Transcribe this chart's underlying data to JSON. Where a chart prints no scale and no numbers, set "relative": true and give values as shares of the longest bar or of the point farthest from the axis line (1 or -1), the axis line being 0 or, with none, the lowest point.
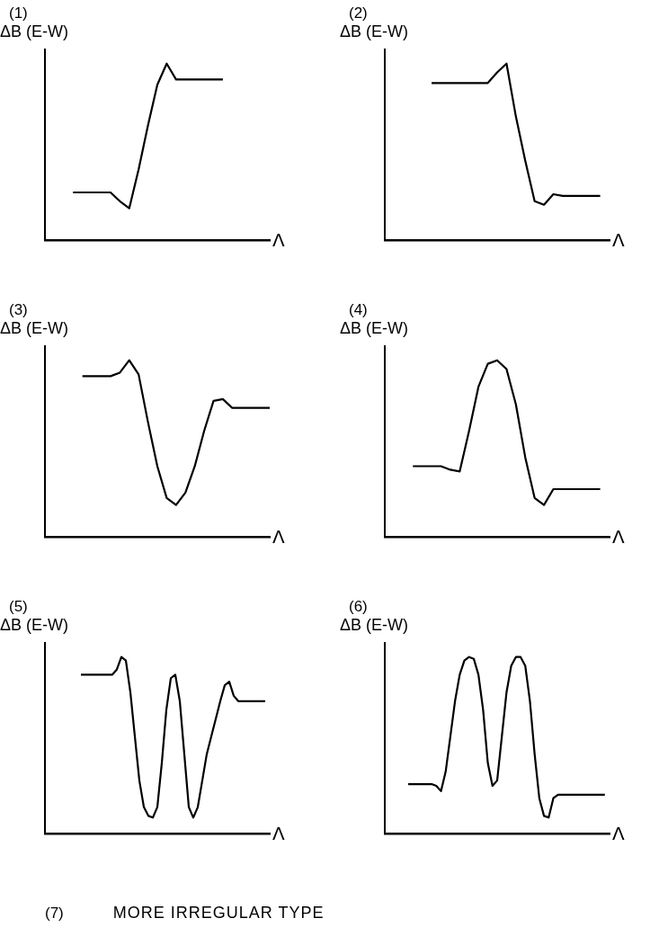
{
  "chart_data": [
    {
      "type": "line",
      "relative": true,
      "title": "(1)",
      "ylabel": "ΔB (E-W)",
      "xlabel": "Λ",
      "grid": false,
      "legend": false,
      "tick_labels": false,
      "marker": "none",
      "line_style": "solid",
      "categories": [
        null,
        null,
        null,
        null,
        null,
        null,
        null,
        null,
        null,
        null,
        null,
        null,
        null,
        null,
        null,
        null,
        null,
        null,
        null,
        null,
        null,
        null,
        null,
        null,
        null
      ],
      "series": [
        {
          "color": "#000000",
          "values": [
            null,
            null,
            null,
            0.27,
            0.27,
            0.27,
            0.27,
            0.27,
            0.22,
            0.18,
            0.4,
            0.65,
            0.88,
            1,
            0.91,
            0.91,
            0.91,
            0.91,
            0.91,
            0.91,
            null,
            null,
            null,
            null,
            null
          ]
        }
      ]
    },
    {
      "type": "line",
      "relative": true,
      "title": "(2)",
      "ylabel": "ΔB (E-W)",
      "xlabel": "Λ",
      "grid": false,
      "legend": false,
      "tick_labels": false,
      "marker": "none",
      "line_style": "solid",
      "categories": [
        null,
        null,
        null,
        null,
        null,
        null,
        null,
        null,
        null,
        null,
        null,
        null,
        null,
        null,
        null,
        null,
        null,
        null,
        null,
        null,
        null,
        null,
        null,
        null,
        null
      ],
      "series": [
        {
          "color": "#000000",
          "values": [
            null,
            null,
            null,
            null,
            null,
            0.89,
            0.89,
            0.89,
            0.89,
            0.89,
            0.89,
            0.89,
            0.95,
            1,
            0.7,
            0.45,
            0.22,
            0.2,
            0.26,
            0.25,
            0.25,
            0.25,
            0.25,
            0.25,
            null
          ]
        }
      ]
    },
    {
      "type": "line",
      "relative": true,
      "title": "(3)",
      "ylabel": "ΔB (E-W)",
      "xlabel": "Λ",
      "grid": false,
      "legend": false,
      "tick_labels": false,
      "marker": "none",
      "line_style": "solid",
      "categories": [
        null,
        null,
        null,
        null,
        null,
        null,
        null,
        null,
        null,
        null,
        null,
        null,
        null,
        null,
        null,
        null,
        null,
        null,
        null,
        null,
        null,
        null,
        null,
        null,
        null
      ],
      "series": [
        {
          "color": "#000000",
          "values": [
            null,
            null,
            null,
            null,
            0.91,
            0.91,
            0.91,
            0.91,
            0.93,
            1,
            0.92,
            0.65,
            0.4,
            0.22,
            0.18,
            0.25,
            0.4,
            0.6,
            0.77,
            0.78,
            0.73,
            0.73,
            0.73,
            0.73,
            0.73
          ]
        }
      ]
    },
    {
      "type": "line",
      "relative": true,
      "title": "(4)",
      "ylabel": "ΔB (E-W)",
      "xlabel": "Λ",
      "grid": false,
      "legend": false,
      "tick_labels": false,
      "marker": "none",
      "line_style": "solid",
      "categories": [
        null,
        null,
        null,
        null,
        null,
        null,
        null,
        null,
        null,
        null,
        null,
        null,
        null,
        null,
        null,
        null,
        null,
        null,
        null,
        null,
        null,
        null,
        null,
        null,
        null
      ],
      "series": [
        {
          "color": "#000000",
          "values": [
            null,
            null,
            null,
            0.4,
            0.4,
            0.4,
            0.4,
            0.38,
            0.37,
            0.6,
            0.85,
            0.98,
            1,
            0.95,
            0.75,
            0.45,
            0.22,
            0.18,
            0.27,
            0.27,
            0.27,
            0.27,
            0.27,
            0.27,
            null
          ]
        }
      ]
    },
    {
      "type": "line",
      "relative": true,
      "title": "(5)",
      "ylabel": "ΔB (E-W)",
      "xlabel": "Λ",
      "grid": false,
      "legend": false,
      "tick_labels": false,
      "marker": "none",
      "line_style": "solid",
      "categories": [
        null,
        null,
        null,
        null,
        null,
        null,
        null,
        null,
        null,
        null,
        null,
        null,
        null,
        null,
        null,
        null,
        null,
        null,
        null,
        null,
        null,
        null,
        null,
        null,
        null,
        null,
        null,
        null,
        null,
        null,
        null,
        null,
        null,
        null,
        null,
        null,
        null,
        null,
        null,
        null,
        null,
        null,
        null,
        null,
        null,
        null,
        null,
        null,
        null,
        null,
        null
      ],
      "series": [
        {
          "color": "#000000",
          "values": [
            null,
            null,
            null,
            null,
            null,
            null,
            null,
            null,
            0.9,
            0.9,
            0.9,
            0.9,
            0.9,
            0.9,
            0.9,
            0.9,
            0.93,
            1,
            0.98,
            0.8,
            0.55,
            0.3,
            0.15,
            0.1,
            0.09,
            0.15,
            0.4,
            0.7,
            0.88,
            0.9,
            0.75,
            0.45,
            0.15,
            0.09,
            0.15,
            0.3,
            0.45,
            0.55,
            0.65,
            0.75,
            0.84,
            0.86,
            0.78,
            0.75,
            0.75,
            0.75,
            0.75,
            0.75,
            0.75,
            0.75,
            null
          ]
        }
      ]
    },
    {
      "type": "line",
      "relative": true,
      "title": "(6)",
      "ylabel": "ΔB (E-W)",
      "xlabel": "Λ",
      "grid": false,
      "legend": false,
      "tick_labels": false,
      "marker": "none",
      "line_style": "solid",
      "categories": [
        null,
        null,
        null,
        null,
        null,
        null,
        null,
        null,
        null,
        null,
        null,
        null,
        null,
        null,
        null,
        null,
        null,
        null,
        null,
        null,
        null,
        null,
        null,
        null,
        null,
        null,
        null,
        null,
        null,
        null,
        null,
        null,
        null,
        null,
        null,
        null,
        null,
        null,
        null,
        null,
        null,
        null,
        null,
        null,
        null,
        null,
        null,
        null,
        null
      ],
      "series": [
        {
          "color": "#000000",
          "values": [
            null,
            null,
            null,
            null,
            null,
            0.28,
            0.28,
            0.28,
            0.28,
            0.28,
            0.28,
            0.27,
            0.24,
            0.35,
            0.55,
            0.75,
            0.9,
            0.98,
            1,
            0.99,
            0.9,
            0.7,
            0.4,
            0.27,
            0.3,
            0.55,
            0.8,
            0.95,
            1,
            1,
            0.95,
            0.75,
            0.45,
            0.2,
            0.1,
            0.09,
            0.2,
            0.22,
            0.22,
            0.22,
            0.22,
            0.22,
            0.22,
            0.22,
            0.22,
            0.22,
            0.22,
            0.22,
            null
          ]
        }
      ]
    },
    {
      "type": "other",
      "title": "(7)",
      "annotations": [
        "MORE IRREGULAR TYPE"
      ]
    }
  ]
}
